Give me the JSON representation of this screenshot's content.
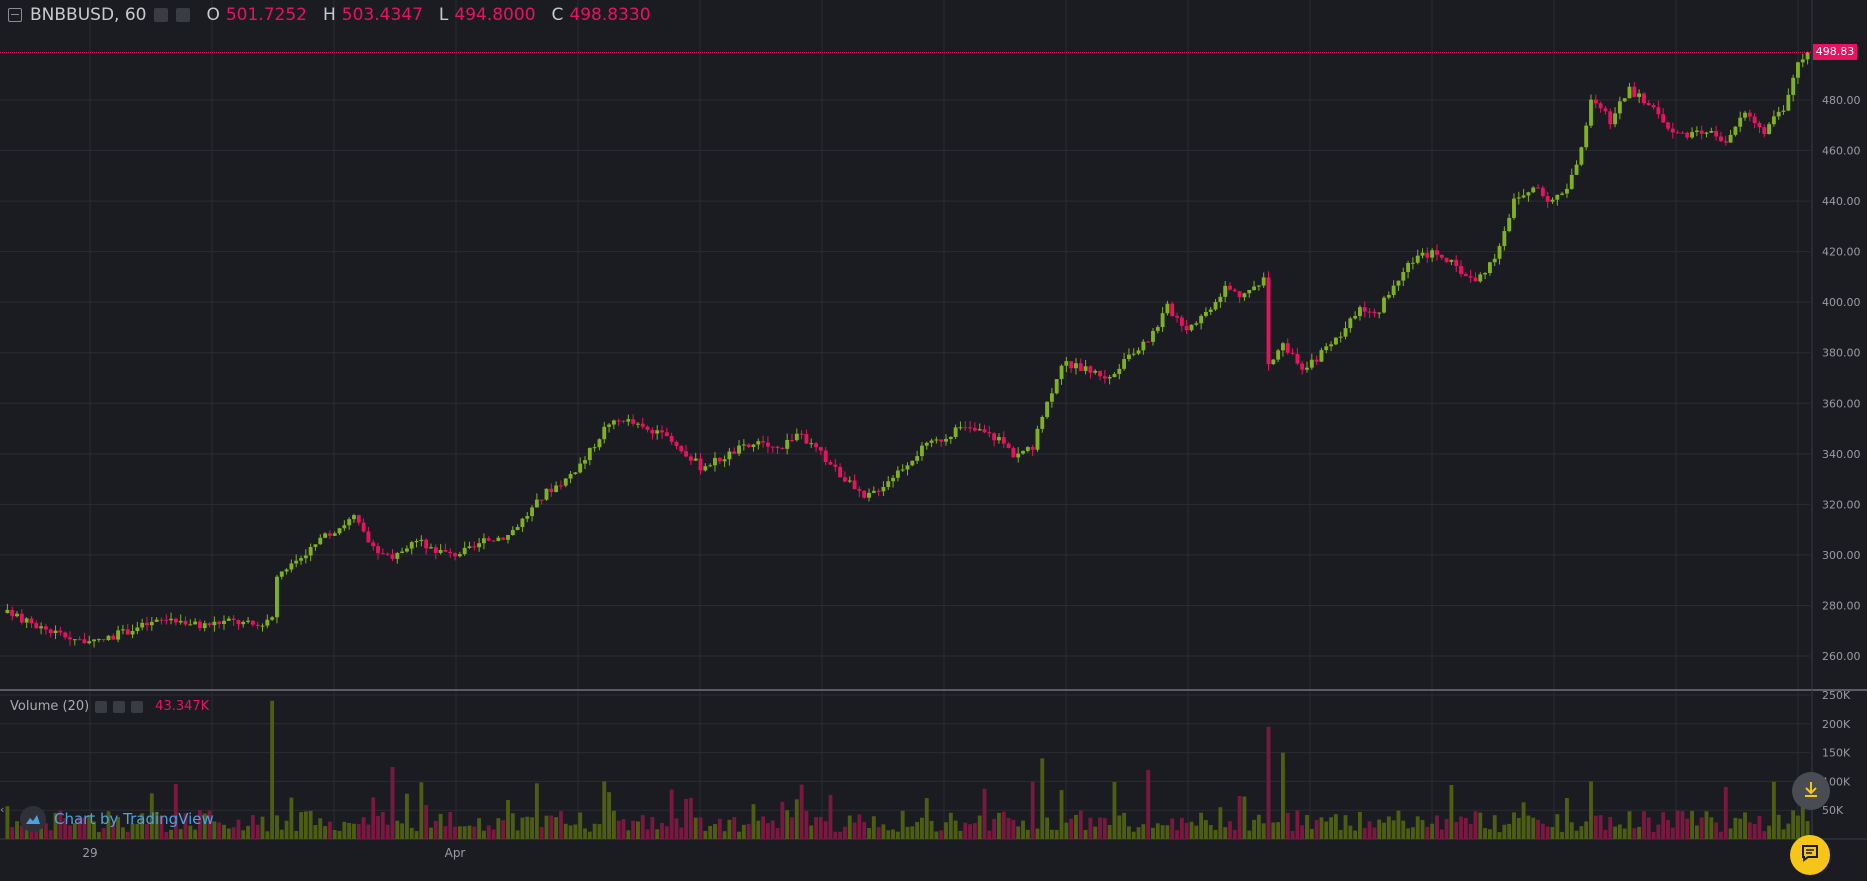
{
  "legend": {
    "symbol": "BNBBUSD, 60",
    "o_label": "O",
    "o_value": "501.7252",
    "h_label": "H",
    "h_value": "503.4347",
    "l_label": "L",
    "l_value": "494.8000",
    "c_label": "C",
    "c_value": "498.8330"
  },
  "volume_legend": {
    "title": "Volume (20)",
    "value": "43.347K"
  },
  "branding": {
    "text": "Chart by TradingView"
  },
  "last_price_tag": "498.83",
  "colors": {
    "background": "#1b1c22",
    "grid": "#2a2c33",
    "up": "#7fb21e",
    "down": "#e8125f",
    "vol_up": "#4d5e12",
    "vol_down": "#7a1840",
    "axis_text": "#9a9ca3",
    "price_line": "#e8125f",
    "fab_chat": "#f5c518"
  },
  "icons": {
    "collapse": "minus-square-icon",
    "scroll_down": "arrow-down-to-line-icon",
    "chat": "chat-bubble-icon",
    "logo": "tradingview-cloud-icon"
  },
  "chart_data": [
    {
      "type": "candlestick",
      "interval": "60",
      "price_axis": {
        "ticks": [
          260,
          280,
          300,
          320,
          340,
          360,
          380,
          400,
          420,
          440,
          460,
          480
        ],
        "tick_labels": [
          "260.00",
          "280.00",
          "300.00",
          "320.00",
          "340.00",
          "360.00",
          "380.00",
          "400.00",
          "420.00",
          "440.00",
          "460.00",
          "480.00"
        ],
        "range": [
          248,
          522
        ]
      },
      "time_axis": {
        "labels": [
          "29",
          "Apr"
        ]
      },
      "last_price": 498.833,
      "close_path": [
        [
          0,
          277
        ],
        [
          6,
          272
        ],
        [
          12,
          268
        ],
        [
          18,
          265
        ],
        [
          22,
          268
        ],
        [
          28,
          272
        ],
        [
          34,
          275
        ],
        [
          40,
          272
        ],
        [
          46,
          274
        ],
        [
          52,
          272
        ],
        [
          55,
          276
        ],
        [
          56,
          292
        ],
        [
          60,
          298
        ],
        [
          64,
          304
        ],
        [
          68,
          310
        ],
        [
          72,
          315
        ],
        [
          76,
          302
        ],
        [
          80,
          298
        ],
        [
          84,
          306
        ],
        [
          88,
          303
        ],
        [
          92,
          300
        ],
        [
          96,
          302
        ],
        [
          100,
          306
        ],
        [
          104,
          308
        ],
        [
          108,
          316
        ],
        [
          112,
          325
        ],
        [
          116,
          330
        ],
        [
          120,
          338
        ],
        [
          124,
          350
        ],
        [
          128,
          354
        ],
        [
          132,
          350
        ],
        [
          136,
          347
        ],
        [
          140,
          342
        ],
        [
          144,
          335
        ],
        [
          148,
          338
        ],
        [
          152,
          342
        ],
        [
          156,
          344
        ],
        [
          160,
          342
        ],
        [
          164,
          348
        ],
        [
          168,
          342
        ],
        [
          172,
          334
        ],
        [
          176,
          326
        ],
        [
          178,
          322
        ],
        [
          182,
          328
        ],
        [
          186,
          335
        ],
        [
          190,
          342
        ],
        [
          194,
          346
        ],
        [
          198,
          350
        ],
        [
          202,
          349
        ],
        [
          206,
          346
        ],
        [
          209,
          340
        ],
        [
          213,
          342
        ],
        [
          215,
          355
        ],
        [
          219,
          376
        ],
        [
          225,
          373
        ],
        [
          229,
          370
        ],
        [
          233,
          378
        ],
        [
          237,
          385
        ],
        [
          241,
          398
        ],
        [
          245,
          390
        ],
        [
          249,
          396
        ],
        [
          253,
          406
        ],
        [
          257,
          402
        ],
        [
          261,
          410
        ],
        [
          262,
          374
        ],
        [
          265,
          384
        ],
        [
          269,
          372
        ],
        [
          273,
          380
        ],
        [
          277,
          386
        ],
        [
          281,
          398
        ],
        [
          285,
          397
        ],
        [
          289,
          410
        ],
        [
          293,
          418
        ],
        [
          297,
          420
        ],
        [
          301,
          414
        ],
        [
          305,
          408
        ],
        [
          309,
          418
        ],
        [
          313,
          440
        ],
        [
          317,
          445
        ],
        [
          321,
          440
        ],
        [
          324,
          446
        ],
        [
          327,
          460
        ],
        [
          329,
          480
        ],
        [
          333,
          472
        ],
        [
          337,
          484
        ],
        [
          341,
          478
        ],
        [
          345,
          470
        ],
        [
          349,
          465
        ],
        [
          353,
          468
        ],
        [
          357,
          464
        ],
        [
          361,
          475
        ],
        [
          365,
          468
        ],
        [
          369,
          476
        ],
        [
          371,
          490
        ],
        [
          373,
          497
        ],
        [
          374,
          498.8
        ]
      ],
      "volume": {
        "title": "Volume (20)",
        "last": "43.347K",
        "axis_ticks": [
          "50K",
          "100K",
          "150K",
          "200K",
          "250K"
        ],
        "spikes": [
          {
            "at": 55,
            "value": 240000
          },
          {
            "at": 80,
            "value": 125000
          },
          {
            "at": 124,
            "value": 100000
          },
          {
            "at": 215,
            "value": 140000
          },
          {
            "at": 237,
            "value": 120000
          },
          {
            "at": 262,
            "value": 195000
          },
          {
            "at": 265,
            "value": 150000
          },
          {
            "at": 329,
            "value": 100000
          },
          {
            "at": 373,
            "value": 100000
          }
        ]
      }
    }
  ]
}
